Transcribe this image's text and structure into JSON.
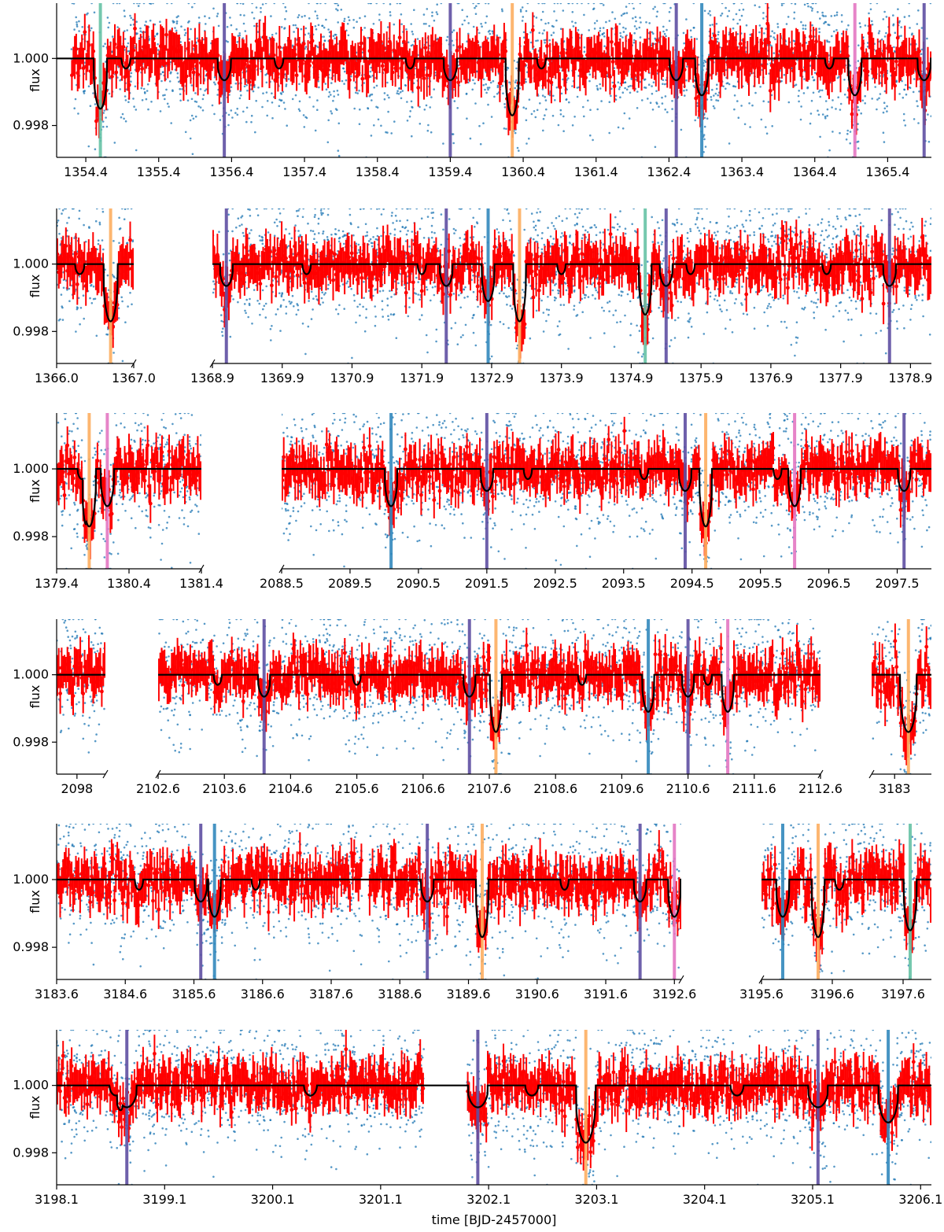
{
  "figure": {
    "ylabel": "flux",
    "xlabel": "time [BJD-2457000]",
    "y_ticks": [
      "1.000",
      "0.998"
    ]
  },
  "chart_data": {
    "type": "scatter",
    "ylim": [
      0.99705,
      1.00165
    ],
    "y_ticks": [
      1.0,
      0.998
    ],
    "series_legend": [
      {
        "name": "",
        "color": "#1f77b4",
        "role": "raw flux points"
      },
      {
        "name": "",
        "color": "#ff0000",
        "role": "binned flux with errors"
      },
      {
        "name": "",
        "color": "#000000",
        "role": "transit model"
      }
    ],
    "marker_colors": {
      "teal": "#66c2a5",
      "purple": "#5e4fa2",
      "blue": "#3288bd",
      "orange": "#fdae61",
      "pink": "#e377c2"
    },
    "transit_depths": {
      "teal": 0.0015,
      "purple": 0.00065,
      "blue": 0.0011,
      "orange": 0.0017,
      "pink": 0.0011,
      "shallow": 0.0003
    },
    "panels": [
      {
        "row": 0,
        "xlim": [
          1354.0,
          1366.0
        ],
        "ticks": [
          1354.4,
          1355.4,
          1356.4,
          1357.4,
          1358.4,
          1359.4,
          1360.4,
          1361.4,
          1362.4,
          1363.4,
          1364.4,
          1365.4
        ],
        "tick_labels": [
          "1354.4",
          "1355.4",
          "1356.4",
          "1357.4",
          "1358.4",
          "1359.4",
          "1360.4",
          "1361.4",
          "1362.4",
          "1363.4",
          "1364.4",
          "1365.4"
        ],
        "segments": [
          [
            1354.2,
            1366.0
          ]
        ],
        "lines": [
          [
            "teal",
            1354.6
          ],
          [
            "purple",
            1356.3
          ],
          [
            "purple",
            1359.4
          ],
          [
            "orange",
            1360.25
          ],
          [
            "purple",
            1362.5
          ],
          [
            "blue",
            1362.85
          ],
          [
            "pink",
            1364.95
          ],
          [
            "purple",
            1365.9
          ]
        ],
        "shallow": [
          1354.95,
          1357.05,
          1358.85,
          1360.65,
          1364.6
        ],
        "left_break": false,
        "right_break": false
      },
      {
        "row": 1,
        "xlim": [
          1366.0,
          1367.0
        ],
        "ticks": [
          1366.0,
          1367.0
        ],
        "tick_labels": [
          "1366.0",
          "1367.0"
        ],
        "segments": [
          [
            1366.0,
            1367.0
          ]
        ],
        "lines": [
          [
            "orange",
            1366.7
          ]
        ],
        "shallow": [
          1366.3
        ],
        "left_break": false,
        "right_break": true
      },
      {
        "row": 1,
        "xlim": [
          1368.9,
          1379.2
        ],
        "ticks": [
          1368.9,
          1369.9,
          1370.9,
          1371.9,
          1372.9,
          1373.9,
          1374.9,
          1375.9,
          1376.9,
          1377.9,
          1378.9
        ],
        "tick_labels": [
          "1368.9",
          "1369.9",
          "1370.9",
          "1371.9",
          "1372.9",
          "1373.9",
          "1374.9",
          "1375.9",
          "1376.9",
          "1377.9",
          "1378.9"
        ],
        "segments": [
          [
            1368.9,
            1379.2
          ]
        ],
        "lines": [
          [
            "purple",
            1369.1
          ],
          [
            "purple",
            1372.25
          ],
          [
            "blue",
            1372.85
          ],
          [
            "orange",
            1373.3
          ],
          [
            "teal",
            1375.1
          ],
          [
            "purple",
            1375.4
          ],
          [
            "purple",
            1378.6
          ]
        ],
        "shallow": [
          1370.25,
          1371.9,
          1373.9,
          1375.75,
          1377.7
        ],
        "left_break": true,
        "right_break": false
      },
      {
        "row": 2,
        "xlim": [
          1379.4,
          1381.4
        ],
        "ticks": [
          1379.4,
          1380.4,
          1381.4
        ],
        "tick_labels": [
          "1379.4",
          "1380.4",
          "1381.4"
        ],
        "segments": [
          [
            1379.4,
            1381.4
          ]
        ],
        "lines": [
          [
            "orange",
            1379.85
          ],
          [
            "pink",
            1380.1
          ]
        ],
        "shallow": [
          1379.75
        ],
        "left_break": false,
        "right_break": true
      },
      {
        "row": 2,
        "xlim": [
          2088.5,
          2098.0
        ],
        "ticks": [
          2088.5,
          2089.5,
          2090.5,
          2091.5,
          2092.5,
          2093.5,
          2094.5,
          2095.5,
          2096.5,
          2097.5
        ],
        "tick_labels": [
          "2088.5",
          "2089.5",
          "2090.5",
          "2091.5",
          "2092.5",
          "2093.5",
          "2094.5",
          "2095.5",
          "2096.5",
          "2097.5"
        ],
        "segments": [
          [
            2088.5,
            2098.0
          ]
        ],
        "lines": [
          [
            "blue",
            2090.1
          ],
          [
            "purple",
            2091.5
          ],
          [
            "purple",
            2094.4
          ],
          [
            "orange",
            2094.7
          ],
          [
            "pink",
            2096.0
          ],
          [
            "purple",
            2097.6
          ]
        ],
        "shallow": [
          2092.1,
          2093.8,
          2095.75
        ],
        "left_break": true,
        "right_break": false
      },
      {
        "row": 3,
        "xlim": [
          2097.75,
          2098.35
        ],
        "ticks": [
          2098.0
        ],
        "tick_labels": [
          "2098"
        ],
        "segments": [
          [
            2097.75,
            2098.35
          ]
        ],
        "lines": [],
        "shallow": [],
        "left_break": false,
        "right_break": true
      },
      {
        "row": 3,
        "xlim": [
          2102.6,
          2112.6
        ],
        "ticks": [
          2102.6,
          2103.6,
          2104.6,
          2105.6,
          2106.6,
          2107.6,
          2108.6,
          2109.6,
          2110.6,
          2111.6,
          2112.6
        ],
        "tick_labels": [
          "2102.6",
          "2103.6",
          "2104.6",
          "2105.6",
          "2106.6",
          "2107.6",
          "2108.6",
          "2109.6",
          "2110.6",
          "2111.6",
          "2112.6"
        ],
        "segments": [
          [
            2102.6,
            2112.6
          ]
        ],
        "lines": [
          [
            "purple",
            2104.2
          ],
          [
            "purple",
            2107.3
          ],
          [
            "orange",
            2107.7
          ],
          [
            "blue",
            2110.0
          ],
          [
            "purple",
            2110.6
          ],
          [
            "pink",
            2111.2
          ]
        ],
        "shallow": [
          2103.5,
          2105.6,
          2109.0,
          2110.9
        ],
        "left_break": true,
        "right_break": true
      },
      {
        "row": 3,
        "xlim": [
          3182.75,
          3183.4
        ],
        "ticks": [
          3183.0
        ],
        "tick_labels": [
          "3183"
        ],
        "segments": [
          [
            3182.75,
            3183.4
          ]
        ],
        "lines": [
          [
            "orange",
            3183.15
          ]
        ],
        "shallow": [],
        "left_break": true,
        "right_break": false
      },
      {
        "row": 4,
        "xlim": [
          3183.6,
          3192.7
        ],
        "ticks": [
          3183.6,
          3184.6,
          3185.6,
          3186.6,
          3187.6,
          3188.6,
          3189.6,
          3190.6,
          3191.6,
          3192.6
        ],
        "tick_labels": [
          "3183.6",
          "3184.6",
          "3185.6",
          "3186.6",
          "3187.6",
          "3188.6",
          "3189.6",
          "3190.6",
          "3191.6",
          "3192.6"
        ],
        "segments": [
          [
            3183.6,
            3188.05
          ],
          [
            3188.15,
            3192.7
          ]
        ],
        "lines": [
          [
            "purple",
            3185.7
          ],
          [
            "blue",
            3185.9
          ],
          [
            "purple",
            3189.0
          ],
          [
            "orange",
            3189.8
          ],
          [
            "purple",
            3192.1
          ],
          [
            "pink",
            3192.6
          ]
        ],
        "shallow": [
          3184.8,
          3186.5,
          3191.0
        ],
        "left_break": false,
        "right_break": true
      },
      {
        "row": 4,
        "xlim": [
          3195.6,
          3198.0
        ],
        "ticks": [
          3195.6,
          3196.6,
          3197.6
        ],
        "tick_labels": [
          "3195.6",
          "3196.6",
          "3197.6"
        ],
        "segments": [
          [
            3195.6,
            3198.0
          ]
        ],
        "lines": [
          [
            "blue",
            3195.9
          ],
          [
            "orange",
            3196.4
          ],
          [
            "teal",
            3197.7
          ]
        ],
        "shallow": [
          3196.7
        ],
        "left_break": true,
        "right_break": false
      },
      {
        "row": 5,
        "xlim": [
          3198.1,
          3206.2
        ],
        "ticks": [
          3198.1,
          3199.1,
          3200.1,
          3201.1,
          3202.1,
          3203.1,
          3204.1,
          3205.1,
          3206.1
        ],
        "tick_labels": [
          "3198.1",
          "3199.1",
          "3200.1",
          "3201.1",
          "3202.1",
          "3203.1",
          "3204.1",
          "3205.1",
          "3206.1"
        ],
        "segments": [
          [
            3198.1,
            3201.5
          ],
          [
            3201.9,
            3206.2
          ]
        ],
        "lines": [
          [
            "purple",
            3198.75
          ],
          [
            "purple",
            3202.0
          ],
          [
            "orange",
            3203.0
          ],
          [
            "purple",
            3205.15
          ],
          [
            "blue",
            3205.8
          ]
        ],
        "shallow": [
          3198.65,
          3200.45,
          3202.5,
          3204.4
        ],
        "left_break": false,
        "right_break": false
      }
    ]
  }
}
